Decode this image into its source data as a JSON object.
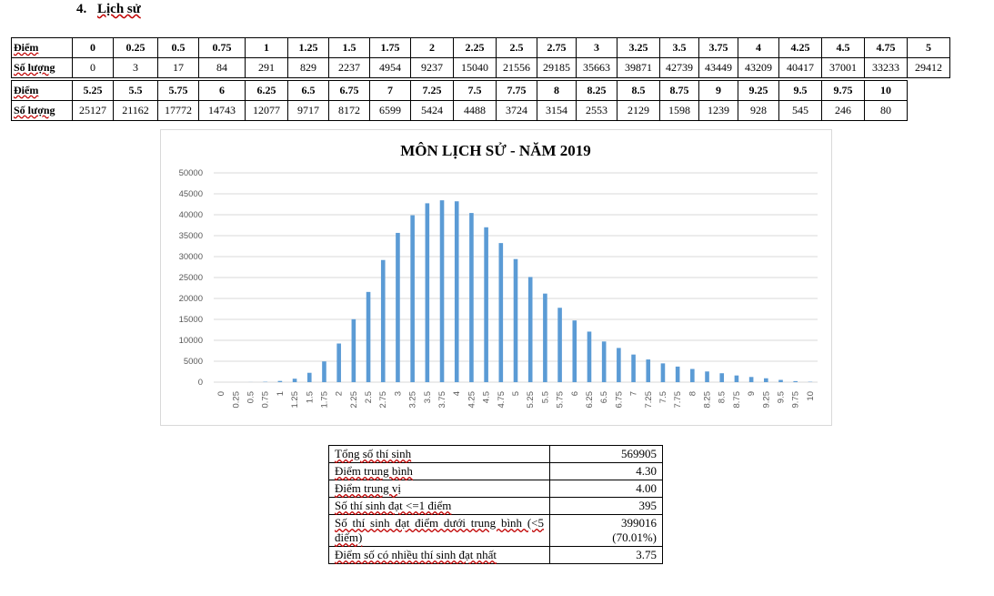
{
  "section": {
    "number": "4.",
    "title": "Lịch sử"
  },
  "freq_table": {
    "score_label": "Điểm",
    "count_label": "Số lượng",
    "row1_scores": [
      "0",
      "0.25",
      "0.5",
      "0.75",
      "1",
      "1.25",
      "1.5",
      "1.75",
      "2",
      "2.25",
      "2.5",
      "2.75",
      "3",
      "3.25",
      "3.5",
      "3.75",
      "4",
      "4.25",
      "4.5",
      "4.75",
      "5"
    ],
    "row1_counts": [
      "0",
      "3",
      "17",
      "84",
      "291",
      "829",
      "2237",
      "4954",
      "9237",
      "15040",
      "21556",
      "29185",
      "35663",
      "39871",
      "42739",
      "43449",
      "43209",
      "40417",
      "37001",
      "33233",
      "29412"
    ],
    "row2_scores": [
      "5.25",
      "5.5",
      "5.75",
      "6",
      "6.25",
      "6.5",
      "6.75",
      "7",
      "7.25",
      "7.5",
      "7.75",
      "8",
      "8.25",
      "8.5",
      "8.75",
      "9",
      "9.25",
      "9.5",
      "9.75",
      "10"
    ],
    "row2_counts": [
      "25127",
      "21162",
      "17772",
      "14743",
      "12077",
      "9717",
      "8172",
      "6599",
      "5424",
      "4488",
      "3724",
      "3154",
      "2553",
      "2129",
      "1598",
      "1239",
      "928",
      "545",
      "246",
      "80"
    ]
  },
  "chart_data": {
    "type": "bar",
    "title": "MÔN LỊCH SỬ - NĂM 2019",
    "categories": [
      "0",
      "0.25",
      "0.5",
      "0.75",
      "1",
      "1.25",
      "1.5",
      "1.75",
      "2",
      "2.25",
      "2.5",
      "2.75",
      "3",
      "3.25",
      "3.5",
      "3.75",
      "4",
      "4.25",
      "4.5",
      "4.75",
      "5",
      "5.25",
      "5.5",
      "5.75",
      "6",
      "6.25",
      "6.5",
      "6.75",
      "7",
      "7.25",
      "7.5",
      "7.75",
      "8",
      "8.25",
      "8.5",
      "8.75",
      "9",
      "9.25",
      "9.5",
      "9.75",
      "10"
    ],
    "values": [
      0,
      3,
      17,
      84,
      291,
      829,
      2237,
      4954,
      9237,
      15040,
      21556,
      29185,
      35663,
      39871,
      42739,
      43449,
      43209,
      40417,
      37001,
      33233,
      29412,
      25127,
      21162,
      17772,
      14743,
      12077,
      9717,
      8172,
      6599,
      5424,
      4488,
      3724,
      3154,
      2553,
      2129,
      1598,
      1239,
      928,
      545,
      246,
      80
    ],
    "yticks": [
      "0",
      "5000",
      "10000",
      "15000",
      "20000",
      "25000",
      "30000",
      "35000",
      "40000",
      "45000",
      "50000"
    ],
    "ylim": [
      0,
      50000
    ],
    "grid": true,
    "bar_color": "#5b9bd5",
    "grid_color": "#d9d9d9"
  },
  "stats": [
    {
      "label": "Tổng số thí sinh",
      "value": "569905"
    },
    {
      "label": "Điểm trung bình",
      "value": "4.30"
    },
    {
      "label": "Điểm trung vị",
      "value": "4.00"
    },
    {
      "label": "Số thí sinh đạt <=1 điểm",
      "value": "395"
    },
    {
      "label": "Số thí sinh đạt điểm dưới trung bình (<5 điểm)",
      "value": "399016",
      "value2": "(70.01%)"
    },
    {
      "label": "Điểm số có nhiều thí sinh đạt nhất",
      "value": "3.75"
    }
  ]
}
